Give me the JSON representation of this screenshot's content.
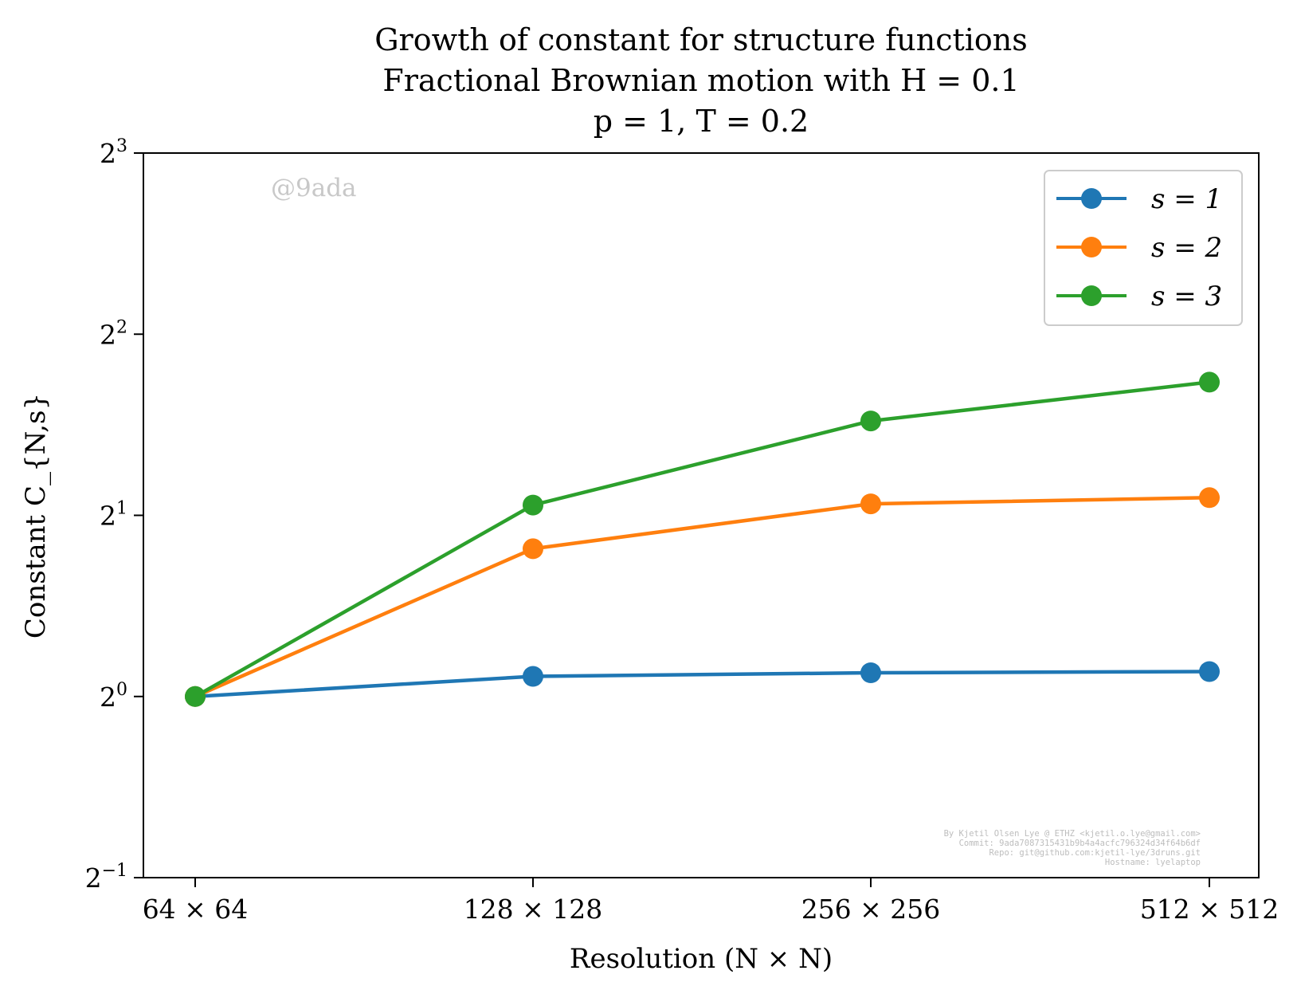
{
  "title_lines": [
    "Growth of constant for structure functions",
    "Fractional Brownian motion with H = 0.1",
    "p = 1, T = 0.2"
  ],
  "watermark": "@9ada",
  "credits": [
    "By Kjetil Olsen Lye @ ETHZ <kjetil.o.lye@gmail.com>",
    "Commit: 9ada7087315431b9b4a4acfc796324d34f64b6df",
    "Repo: git@github.com:kjetil-lye/3druns.git",
    "Hostname: lyelaptop"
  ],
  "chart_data": {
    "type": "line",
    "title": "Growth of constant for structure functions\nFractional Brownian motion with H = 0.1\np = 1, T = 0.2",
    "xlabel": "Resolution (N × N)",
    "ylabel": "Constant C_{N,s}",
    "categories": [
      "64 × 64",
      "128 × 128",
      "256 × 256",
      "512 × 512"
    ],
    "y_scale": "log2",
    "ylim": [
      0.5,
      8
    ],
    "yticks": [
      {
        "value": 0.5,
        "base": "2",
        "exp": "−1"
      },
      {
        "value": 1,
        "base": "2",
        "exp": "0"
      },
      {
        "value": 2,
        "base": "2",
        "exp": "1"
      },
      {
        "value": 4,
        "base": "2",
        "exp": "2"
      },
      {
        "value": 8,
        "base": "2",
        "exp": "3"
      }
    ],
    "grid": false,
    "legend_position": "top-right",
    "series": [
      {
        "name": "s = 1",
        "color": "#1f77b4",
        "values": [
          1.0,
          1.08,
          1.095,
          1.1
        ]
      },
      {
        "name": "s = 2",
        "color": "#ff7f0e",
        "values": [
          1.0,
          1.76,
          2.09,
          2.14
        ]
      },
      {
        "name": "s = 3",
        "color": "#2ca02c",
        "values": [
          1.0,
          2.08,
          2.87,
          3.33
        ]
      }
    ]
  }
}
